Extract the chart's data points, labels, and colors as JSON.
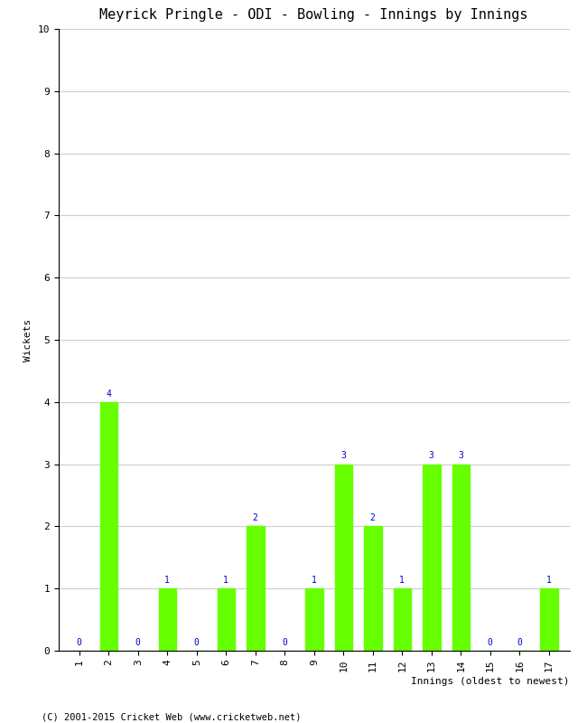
{
  "title": "Meyrick Pringle - ODI - Bowling - Innings by Innings",
  "xlabel": "Innings (oldest to newest)",
  "ylabel": "Wickets",
  "categories": [
    "1",
    "2",
    "3",
    "4",
    "5",
    "6",
    "7",
    "8",
    "9",
    "10",
    "11",
    "12",
    "13",
    "14",
    "15",
    "16",
    "17"
  ],
  "values": [
    0,
    4,
    0,
    1,
    0,
    1,
    2,
    0,
    1,
    3,
    2,
    1,
    3,
    3,
    0,
    0,
    1
  ],
  "bar_color": "#66ff00",
  "label_color": "#0000cc",
  "ylim": [
    0,
    10
  ],
  "yticks": [
    0,
    1,
    2,
    3,
    4,
    5,
    6,
    7,
    8,
    9,
    10
  ],
  "grid_color": "#cccccc",
  "bg_color": "#ffffff",
  "footer": "(C) 2001-2015 Cricket Web (www.cricketweb.net)",
  "title_fontsize": 11,
  "axis_label_fontsize": 8,
  "tick_fontsize": 8,
  "bar_label_fontsize": 7
}
